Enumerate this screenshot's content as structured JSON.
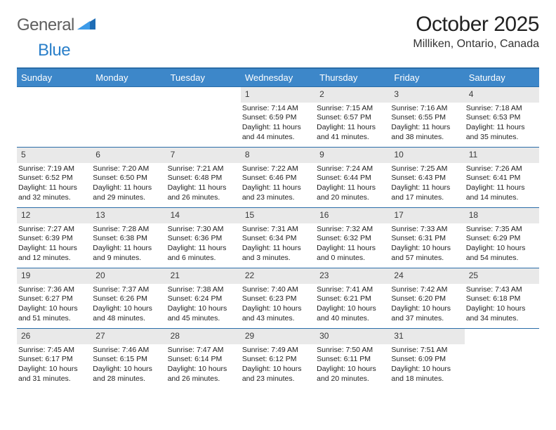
{
  "brand": {
    "part1": "General",
    "part2": "Blue"
  },
  "title": "October 2025",
  "location": "Milliken, Ontario, Canada",
  "colors": {
    "header_bg": "#3d87c9",
    "header_border": "#2a6da8",
    "daynum_bg": "#e9e9e9",
    "logo_gray": "#5f5f5f",
    "logo_blue": "#2a7fc9"
  },
  "day_headers": [
    "Sunday",
    "Monday",
    "Tuesday",
    "Wednesday",
    "Thursday",
    "Friday",
    "Saturday"
  ],
  "weeks": [
    [
      {
        "n": "",
        "sr": "",
        "ss": "",
        "dl": ""
      },
      {
        "n": "",
        "sr": "",
        "ss": "",
        "dl": ""
      },
      {
        "n": "",
        "sr": "",
        "ss": "",
        "dl": ""
      },
      {
        "n": "1",
        "sr": "Sunrise: 7:14 AM",
        "ss": "Sunset: 6:59 PM",
        "dl": "Daylight: 11 hours and 44 minutes."
      },
      {
        "n": "2",
        "sr": "Sunrise: 7:15 AM",
        "ss": "Sunset: 6:57 PM",
        "dl": "Daylight: 11 hours and 41 minutes."
      },
      {
        "n": "3",
        "sr": "Sunrise: 7:16 AM",
        "ss": "Sunset: 6:55 PM",
        "dl": "Daylight: 11 hours and 38 minutes."
      },
      {
        "n": "4",
        "sr": "Sunrise: 7:18 AM",
        "ss": "Sunset: 6:53 PM",
        "dl": "Daylight: 11 hours and 35 minutes."
      }
    ],
    [
      {
        "n": "5",
        "sr": "Sunrise: 7:19 AM",
        "ss": "Sunset: 6:52 PM",
        "dl": "Daylight: 11 hours and 32 minutes."
      },
      {
        "n": "6",
        "sr": "Sunrise: 7:20 AM",
        "ss": "Sunset: 6:50 PM",
        "dl": "Daylight: 11 hours and 29 minutes."
      },
      {
        "n": "7",
        "sr": "Sunrise: 7:21 AM",
        "ss": "Sunset: 6:48 PM",
        "dl": "Daylight: 11 hours and 26 minutes."
      },
      {
        "n": "8",
        "sr": "Sunrise: 7:22 AM",
        "ss": "Sunset: 6:46 PM",
        "dl": "Daylight: 11 hours and 23 minutes."
      },
      {
        "n": "9",
        "sr": "Sunrise: 7:24 AM",
        "ss": "Sunset: 6:44 PM",
        "dl": "Daylight: 11 hours and 20 minutes."
      },
      {
        "n": "10",
        "sr": "Sunrise: 7:25 AM",
        "ss": "Sunset: 6:43 PM",
        "dl": "Daylight: 11 hours and 17 minutes."
      },
      {
        "n": "11",
        "sr": "Sunrise: 7:26 AM",
        "ss": "Sunset: 6:41 PM",
        "dl": "Daylight: 11 hours and 14 minutes."
      }
    ],
    [
      {
        "n": "12",
        "sr": "Sunrise: 7:27 AM",
        "ss": "Sunset: 6:39 PM",
        "dl": "Daylight: 11 hours and 12 minutes."
      },
      {
        "n": "13",
        "sr": "Sunrise: 7:28 AM",
        "ss": "Sunset: 6:38 PM",
        "dl": "Daylight: 11 hours and 9 minutes."
      },
      {
        "n": "14",
        "sr": "Sunrise: 7:30 AM",
        "ss": "Sunset: 6:36 PM",
        "dl": "Daylight: 11 hours and 6 minutes."
      },
      {
        "n": "15",
        "sr": "Sunrise: 7:31 AM",
        "ss": "Sunset: 6:34 PM",
        "dl": "Daylight: 11 hours and 3 minutes."
      },
      {
        "n": "16",
        "sr": "Sunrise: 7:32 AM",
        "ss": "Sunset: 6:32 PM",
        "dl": "Daylight: 11 hours and 0 minutes."
      },
      {
        "n": "17",
        "sr": "Sunrise: 7:33 AM",
        "ss": "Sunset: 6:31 PM",
        "dl": "Daylight: 10 hours and 57 minutes."
      },
      {
        "n": "18",
        "sr": "Sunrise: 7:35 AM",
        "ss": "Sunset: 6:29 PM",
        "dl": "Daylight: 10 hours and 54 minutes."
      }
    ],
    [
      {
        "n": "19",
        "sr": "Sunrise: 7:36 AM",
        "ss": "Sunset: 6:27 PM",
        "dl": "Daylight: 10 hours and 51 minutes."
      },
      {
        "n": "20",
        "sr": "Sunrise: 7:37 AM",
        "ss": "Sunset: 6:26 PM",
        "dl": "Daylight: 10 hours and 48 minutes."
      },
      {
        "n": "21",
        "sr": "Sunrise: 7:38 AM",
        "ss": "Sunset: 6:24 PM",
        "dl": "Daylight: 10 hours and 45 minutes."
      },
      {
        "n": "22",
        "sr": "Sunrise: 7:40 AM",
        "ss": "Sunset: 6:23 PM",
        "dl": "Daylight: 10 hours and 43 minutes."
      },
      {
        "n": "23",
        "sr": "Sunrise: 7:41 AM",
        "ss": "Sunset: 6:21 PM",
        "dl": "Daylight: 10 hours and 40 minutes."
      },
      {
        "n": "24",
        "sr": "Sunrise: 7:42 AM",
        "ss": "Sunset: 6:20 PM",
        "dl": "Daylight: 10 hours and 37 minutes."
      },
      {
        "n": "25",
        "sr": "Sunrise: 7:43 AM",
        "ss": "Sunset: 6:18 PM",
        "dl": "Daylight: 10 hours and 34 minutes."
      }
    ],
    [
      {
        "n": "26",
        "sr": "Sunrise: 7:45 AM",
        "ss": "Sunset: 6:17 PM",
        "dl": "Daylight: 10 hours and 31 minutes."
      },
      {
        "n": "27",
        "sr": "Sunrise: 7:46 AM",
        "ss": "Sunset: 6:15 PM",
        "dl": "Daylight: 10 hours and 28 minutes."
      },
      {
        "n": "28",
        "sr": "Sunrise: 7:47 AM",
        "ss": "Sunset: 6:14 PM",
        "dl": "Daylight: 10 hours and 26 minutes."
      },
      {
        "n": "29",
        "sr": "Sunrise: 7:49 AM",
        "ss": "Sunset: 6:12 PM",
        "dl": "Daylight: 10 hours and 23 minutes."
      },
      {
        "n": "30",
        "sr": "Sunrise: 7:50 AM",
        "ss": "Sunset: 6:11 PM",
        "dl": "Daylight: 10 hours and 20 minutes."
      },
      {
        "n": "31",
        "sr": "Sunrise: 7:51 AM",
        "ss": "Sunset: 6:09 PM",
        "dl": "Daylight: 10 hours and 18 minutes."
      },
      {
        "n": "",
        "sr": "",
        "ss": "",
        "dl": ""
      }
    ]
  ]
}
